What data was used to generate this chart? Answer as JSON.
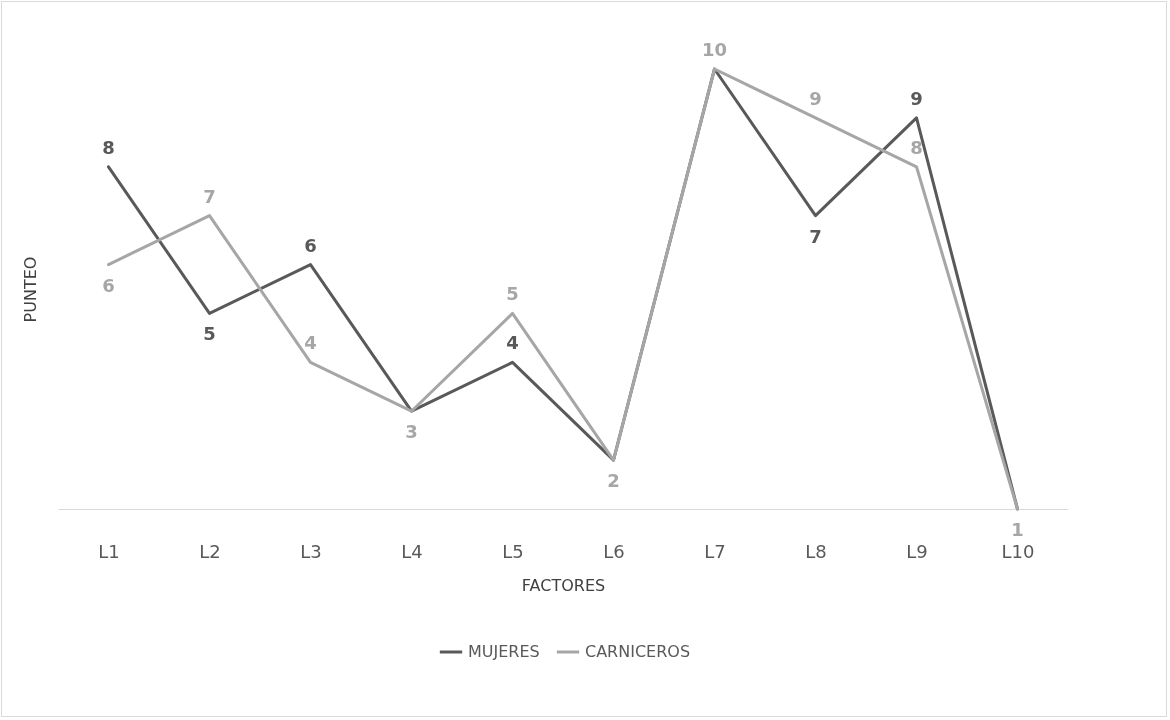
{
  "chart_data": {
    "type": "line",
    "xlabel": "FACTORES",
    "ylabel": "PUNTEO",
    "categories": [
      "L1",
      "L2",
      "L3",
      "L4",
      "L5",
      "L6",
      "L7",
      "L8",
      "L9",
      "L10"
    ],
    "series": [
      {
        "name": "MUJERES",
        "color": "#595959",
        "values": [
          8,
          5,
          6,
          3,
          4,
          2,
          10,
          7,
          9,
          1
        ],
        "value_labels": [
          "8",
          "5",
          "6",
          null,
          "4",
          null,
          null,
          "7",
          "9",
          null
        ]
      },
      {
        "name": "CARNICEROS",
        "color": "#a6a6a6",
        "values": [
          6,
          7,
          4,
          3,
          5,
          2,
          10,
          9,
          8,
          1
        ],
        "value_labels": [
          "6",
          "7",
          "4",
          "3",
          "5",
          "2",
          "10",
          "9",
          "8",
          "1"
        ]
      }
    ],
    "legend": "bottom",
    "grid": false,
    "marker": "none",
    "line_style": "solid"
  }
}
